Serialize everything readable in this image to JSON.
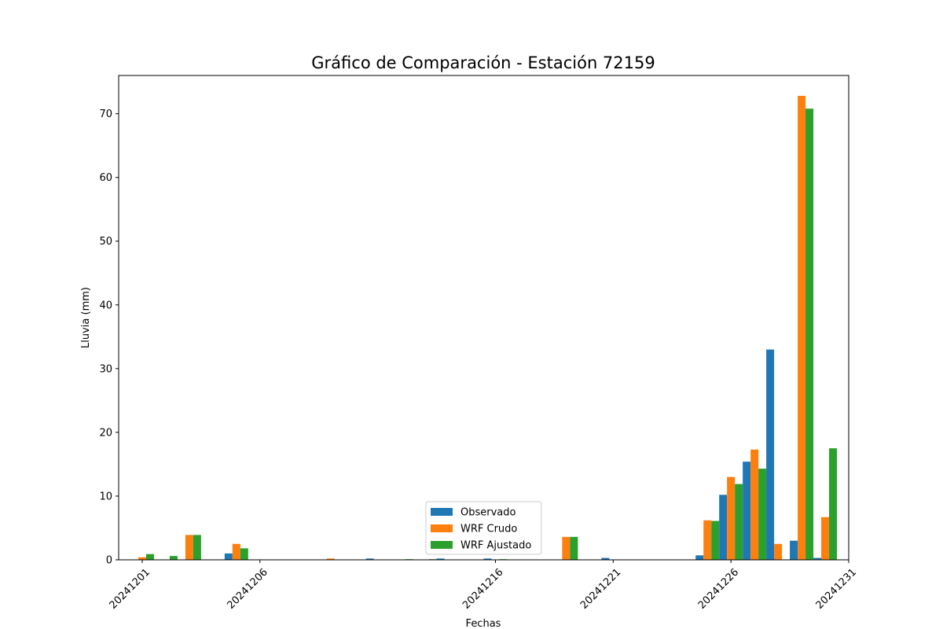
{
  "chart_data": {
    "type": "bar",
    "title": "Gráfico de Comparación - Estación 72159",
    "xlabel": "Fechas",
    "ylabel": "Lluvia (mm)",
    "ylim": [
      0,
      76
    ],
    "yticks": [
      0,
      10,
      20,
      30,
      40,
      50,
      60,
      70
    ],
    "xlim": [
      "2024-11-30",
      "2024-12-31"
    ],
    "xticks": [
      "20241201",
      "20241206",
      "20241216",
      "20241221",
      "20241226",
      "20241231"
    ],
    "grid": false,
    "legend_position": "lower center",
    "series": [
      {
        "name": "Observado",
        "color": "#1f77b4",
        "points": [
          {
            "date": "2024-12-01",
            "value": 0.0
          },
          {
            "date": "2024-12-02",
            "value": 0.0
          },
          {
            "date": "2024-12-03",
            "value": 0.0
          },
          {
            "date": "2024-12-05",
            "value": 1.0
          },
          {
            "date": "2024-12-09",
            "value": 0.0
          },
          {
            "date": "2024-12-11",
            "value": 0.2
          },
          {
            "date": "2024-12-12",
            "value": 0.0
          },
          {
            "date": "2024-12-13",
            "value": 0.0
          },
          {
            "date": "2024-12-14",
            "value": 0.2
          },
          {
            "date": "2024-12-16",
            "value": 0.2
          },
          {
            "date": "2024-12-19",
            "value": 0.0
          },
          {
            "date": "2024-12-21",
            "value": 0.3
          },
          {
            "date": "2024-12-25",
            "value": 0.7
          },
          {
            "date": "2024-12-26",
            "value": 10.2
          },
          {
            "date": "2024-12-27",
            "value": 15.4
          },
          {
            "date": "2024-12-28",
            "value": 33.0
          },
          {
            "date": "2024-12-29",
            "value": 3.0
          },
          {
            "date": "2024-12-30",
            "value": 0.3
          }
        ]
      },
      {
        "name": "WRF Crudo",
        "color": "#ff7f0e",
        "points": [
          {
            "date": "2024-12-01",
            "value": 0.4
          },
          {
            "date": "2024-12-02",
            "value": 0.0
          },
          {
            "date": "2024-12-03",
            "value": 3.9
          },
          {
            "date": "2024-12-05",
            "value": 2.5
          },
          {
            "date": "2024-12-09",
            "value": 0.2
          },
          {
            "date": "2024-12-11",
            "value": 0.0
          },
          {
            "date": "2024-12-12",
            "value": 0.0
          },
          {
            "date": "2024-12-13",
            "value": 0.0
          },
          {
            "date": "2024-12-14",
            "value": 0.0
          },
          {
            "date": "2024-12-16",
            "value": 0.0
          },
          {
            "date": "2024-12-19",
            "value": 3.6
          },
          {
            "date": "2024-12-21",
            "value": 0.0
          },
          {
            "date": "2024-12-25",
            "value": 6.2
          },
          {
            "date": "2024-12-26",
            "value": 13.0
          },
          {
            "date": "2024-12-27",
            "value": 17.3
          },
          {
            "date": "2024-12-28",
            "value": 2.5
          },
          {
            "date": "2024-12-29",
            "value": 72.8
          },
          {
            "date": "2024-12-30",
            "value": 6.7
          }
        ]
      },
      {
        "name": "WRF Ajustado",
        "color": "#2ca02c",
        "points": [
          {
            "date": "2024-12-01",
            "value": 0.9
          },
          {
            "date": "2024-12-02",
            "value": 0.6
          },
          {
            "date": "2024-12-03",
            "value": 3.9
          },
          {
            "date": "2024-12-05",
            "value": 1.8
          },
          {
            "date": "2024-12-09",
            "value": 0.0
          },
          {
            "date": "2024-12-11",
            "value": 0.0
          },
          {
            "date": "2024-12-12",
            "value": 0.1
          },
          {
            "date": "2024-12-13",
            "value": 0.1
          },
          {
            "date": "2024-12-14",
            "value": 0.0
          },
          {
            "date": "2024-12-16",
            "value": 0.1
          },
          {
            "date": "2024-12-19",
            "value": 3.6
          },
          {
            "date": "2024-12-21",
            "value": 0.0
          },
          {
            "date": "2024-12-25",
            "value": 6.1
          },
          {
            "date": "2024-12-26",
            "value": 11.9
          },
          {
            "date": "2024-12-27",
            "value": 14.3
          },
          {
            "date": "2024-12-28",
            "value": 0.0
          },
          {
            "date": "2024-12-29",
            "value": 70.8
          },
          {
            "date": "2024-12-30",
            "value": 17.5
          }
        ]
      }
    ]
  }
}
